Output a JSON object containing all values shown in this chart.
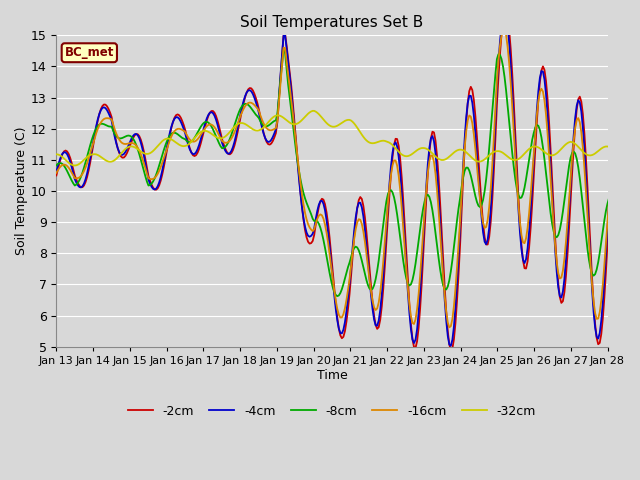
{
  "title": "Soil Temperatures Set B",
  "xlabel": "Time",
  "ylabel": "Soil Temperature (C)",
  "ylim": [
    5.0,
    15.0
  ],
  "yticks": [
    5.0,
    6.0,
    7.0,
    8.0,
    9.0,
    10.0,
    11.0,
    12.0,
    13.0,
    14.0,
    15.0
  ],
  "bg_color": "#d8d8d8",
  "plot_bg_color": "#d8d8d8",
  "grid_color": "#ffffff",
  "label_box_text": "BC_met",
  "label_box_bg": "#ffffc0",
  "label_box_border": "#800000",
  "label_box_text_color": "#800000",
  "series": [
    {
      "label": "-2cm",
      "color": "#cc0000",
      "lw": 1.3
    },
    {
      "label": "-4cm",
      "color": "#0000cc",
      "lw": 1.3
    },
    {
      "label": "-8cm",
      "color": "#00aa00",
      "lw": 1.3
    },
    {
      "label": "-16cm",
      "color": "#dd8800",
      "lw": 1.3
    },
    {
      "label": "-32cm",
      "color": "#cccc00",
      "lw": 1.3
    }
  ],
  "xtick_labels": [
    "Jan 13",
    "Jan 14",
    "Jan 15",
    "Jan 16",
    "Jan 17",
    "Jan 18",
    "Jan 19",
    "Jan 20",
    "Jan 21",
    "Jan 22",
    "Jan 23",
    "Jan 24",
    "Jan 25",
    "Jan 26",
    "Jan 27",
    "Jan 28"
  ],
  "n_days": 16,
  "pts_per_day": 24,
  "legend_fontsize": 9,
  "title_fontsize": 11,
  "axis_fontsize": 9
}
